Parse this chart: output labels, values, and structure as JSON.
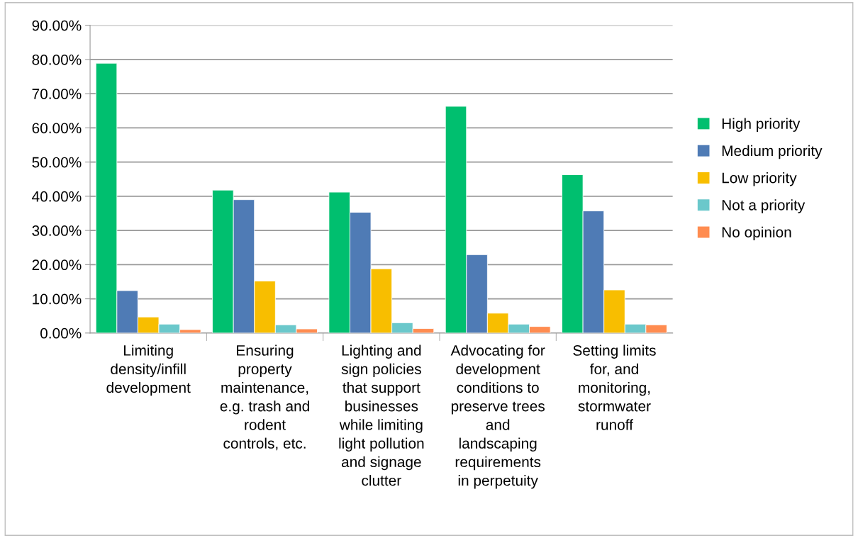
{
  "chart_data": {
    "type": "bar",
    "categories": [
      "Limiting\ndensity/infill\ndevelopment",
      "Ensuring\nproperty\nmaintenance,\ne.g. trash and\nrodent\ncontrols, etc.",
      "Lighting and\nsign policies\nthat support\nbusinesses\nwhile limiting\nlight pollution\nand signage\nclutter",
      "Advocating for\ndevelopment\nconditions to\npreserve trees\nand\nlandscaping\nrequirements\nin perpetuity",
      "Setting limits\nfor, and\nmonitoring,\nstormwater\nrunoff"
    ],
    "series": [
      {
        "name": "High priority",
        "color": "#00bf6f",
        "values": [
          78.9,
          41.8,
          41.2,
          66.3,
          46.3
        ]
      },
      {
        "name": "Medium priority",
        "color": "#4f7bb5",
        "values": [
          12.4,
          39.0,
          35.3,
          22.9,
          35.7
        ]
      },
      {
        "name": "Low priority",
        "color": "#f8be00",
        "values": [
          4.7,
          15.2,
          18.8,
          5.8,
          12.6
        ]
      },
      {
        "name": "Not a priority",
        "color": "#6bc8cb",
        "values": [
          2.6,
          2.4,
          3.0,
          2.6,
          2.6
        ]
      },
      {
        "name": "No opinion",
        "color": "#ff8c50",
        "values": [
          1.0,
          1.2,
          1.3,
          1.9,
          2.4
        ]
      }
    ],
    "ylim": [
      0,
      90
    ],
    "yticks": [
      {
        "value": 0,
        "label": "0.00%"
      },
      {
        "value": 10,
        "label": "10.00%"
      },
      {
        "value": 20,
        "label": "20.00%"
      },
      {
        "value": 30,
        "label": "30.00%"
      },
      {
        "value": 40,
        "label": "40.00%"
      },
      {
        "value": 50,
        "label": "50.00%"
      },
      {
        "value": 60,
        "label": "60.00%"
      },
      {
        "value": 70,
        "label": "70.00%"
      },
      {
        "value": 80,
        "label": "80.00%"
      },
      {
        "value": 90,
        "label": "90.00%"
      }
    ],
    "grid": "y",
    "legend": "right"
  }
}
